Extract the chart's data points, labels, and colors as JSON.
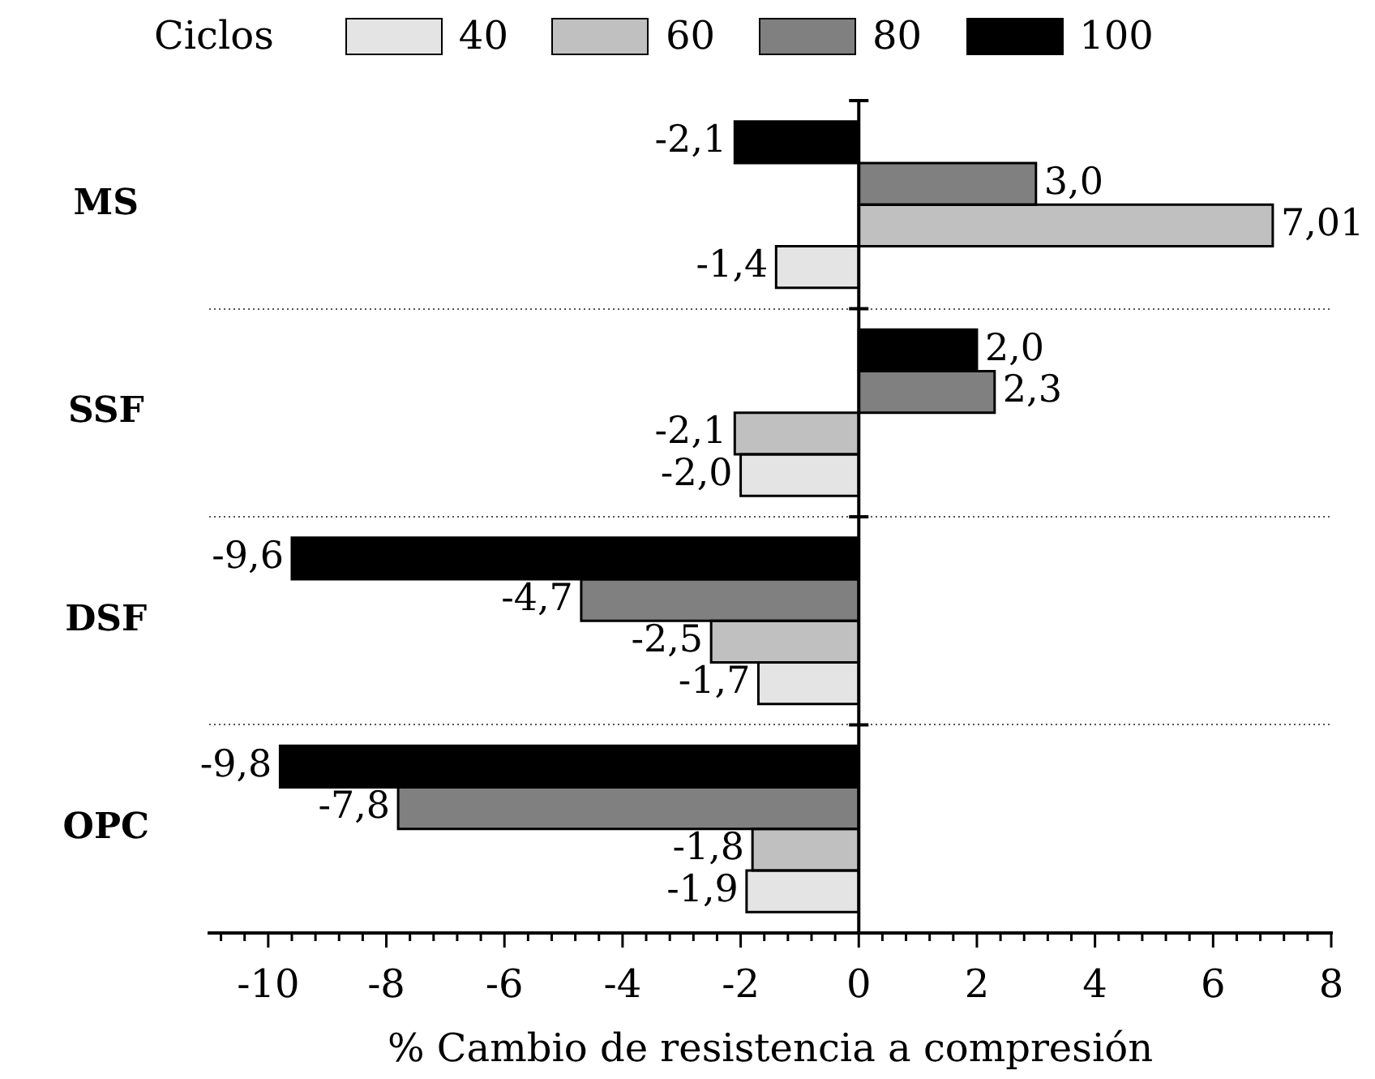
{
  "chart_data": {
    "type": "bar",
    "orientation": "horizontal",
    "categories": [
      "MS",
      "SSF",
      "DSF",
      "OPC"
    ],
    "series": [
      {
        "name": "40",
        "color": "#e4e4e4",
        "values": [
          -1.4,
          -2.0,
          -1.7,
          -1.9
        ],
        "value_labels": [
          "-1,4",
          "-2,0",
          "-1,7",
          "-1,9"
        ]
      },
      {
        "name": "60",
        "color": "#c0c0c0",
        "values": [
          7.01,
          -2.1,
          -2.5,
          -1.8
        ],
        "value_labels": [
          "7,01",
          "-2,1",
          "-2,5",
          "-1,8"
        ]
      },
      {
        "name": "80",
        "color": "#808080",
        "values": [
          3.0,
          2.3,
          -4.7,
          -7.8
        ],
        "value_labels": [
          "3,0",
          "2,3",
          "-4,7",
          "-7,8"
        ]
      },
      {
        "name": "100",
        "color": "#000000",
        "values": [
          -2.1,
          2.0,
          -9.6,
          -9.8
        ],
        "value_labels": [
          "-2,1",
          "2,0",
          "-9,6",
          "-9,8"
        ]
      }
    ],
    "legend": "top",
    "legend_title": "Ciclos",
    "xlabel": "% Cambio de resistencia a compresión",
    "grid": "y",
    "xlim": [
      -11,
      8
    ],
    "xticks": [
      {
        "value": -10.8,
        "label": null
      },
      {
        "value": -10.4,
        "label": null
      },
      -10,
      {
        "value": -9.6,
        "label": null
      },
      {
        "value": -9.2,
        "label": null
      },
      {
        "value": -8.8,
        "label": null
      },
      {
        "value": -8.4,
        "label": null
      },
      -8,
      {
        "value": -7.6,
        "label": null
      },
      {
        "value": -7.2,
        "label": null
      },
      {
        "value": -6.8,
        "label": null
      },
      {
        "value": -6.4,
        "label": null
      },
      -6,
      {
        "value": -5.6,
        "label": null
      },
      {
        "value": -5.2,
        "label": null
      },
      {
        "value": -4.8,
        "label": null
      },
      {
        "value": -4.4,
        "label": null
      },
      -4,
      {
        "value": -3.6,
        "label": null
      },
      {
        "value": -3.2,
        "label": null
      },
      {
        "value": -2.8,
        "label": null
      },
      {
        "value": -2.4,
        "label": null
      },
      -2,
      {
        "value": -1.6,
        "label": null
      },
      {
        "value": -1.2,
        "label": null
      },
      {
        "value": -0.8,
        "label": null
      },
      {
        "value": -0.4,
        "label": null
      },
      0,
      {
        "value": 0.4,
        "label": null
      },
      {
        "value": 0.8,
        "label": null
      },
      {
        "value": 1.2,
        "label": null
      },
      {
        "value": 1.6,
        "label": null
      },
      2,
      {
        "value": 2.4,
        "label": null
      },
      {
        "value": 2.8,
        "label": null
      },
      {
        "value": 3.2,
        "label": null
      },
      {
        "value": 3.6,
        "label": null
      },
      4,
      {
        "value": 4.4,
        "label": null
      },
      {
        "value": 4.8,
        "label": null
      },
      {
        "value": 5.2,
        "label": null
      },
      {
        "value": 5.6,
        "label": null
      },
      6,
      {
        "value": 6.4,
        "label": null
      },
      {
        "value": 6.8,
        "label": null
      },
      {
        "value": 7.2,
        "label": null
      },
      {
        "value": 7.6,
        "label": null
      },
      8
    ]
  }
}
